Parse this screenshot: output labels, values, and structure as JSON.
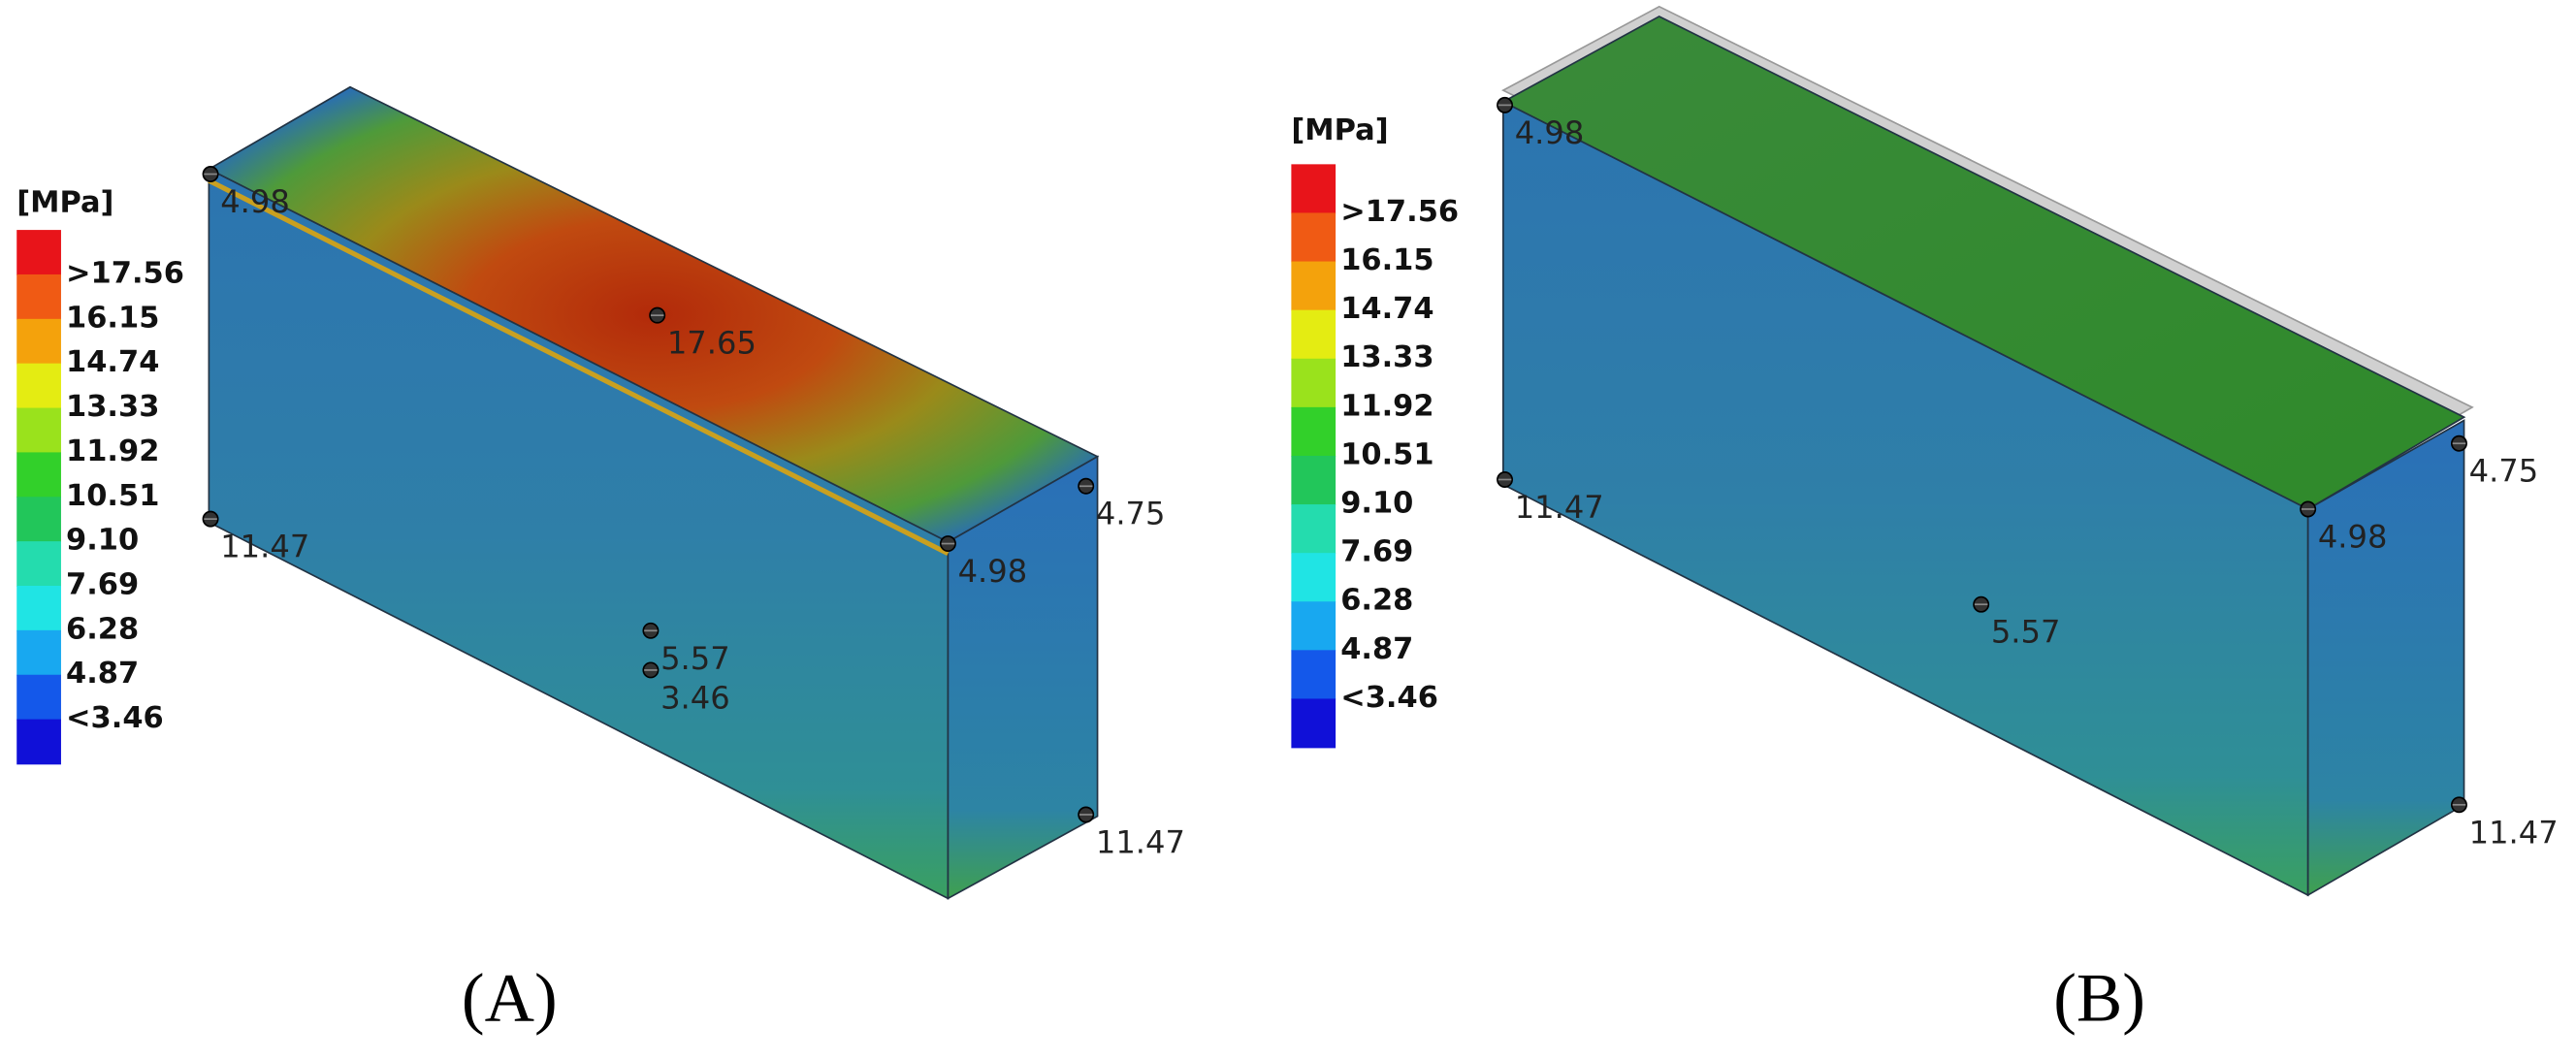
{
  "panels": [
    {
      "caption": "(A)",
      "unit": "[MPa]",
      "legend": [
        ">17.56",
        "16.15",
        "14.74",
        "13.33",
        "11.92",
        "10.51",
        "9.10",
        "7.69",
        "6.28",
        "4.87",
        "<3.46"
      ],
      "probes": [
        "4.98",
        "17.65",
        "4.75",
        "4.98",
        "11.47",
        "5.57",
        "3.46",
        "11.47"
      ]
    },
    {
      "caption": "(B)",
      "unit": "[MPa]",
      "legend": [
        ">17.56",
        "16.15",
        "14.74",
        "13.33",
        "11.92",
        "10.51",
        "9.10",
        "7.69",
        "6.28",
        "4.87",
        "<3.46"
      ],
      "probes": [
        "4.98",
        "4.75",
        "4.98",
        "11.47",
        "5.57",
        "11.47"
      ]
    }
  ]
}
